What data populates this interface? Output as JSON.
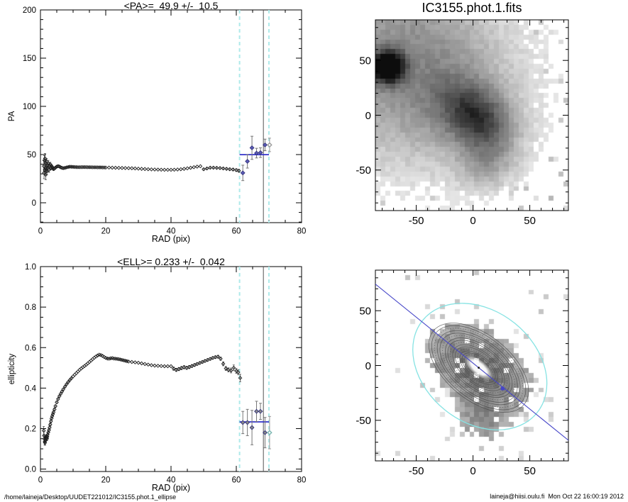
{
  "page": {
    "background": "#ffffff",
    "footer_left": "/home/laineja/Desktop/UUDET221012/IC3155.phot.1_ellipse",
    "footer_right": "laineja@hiisi.oulu.fi  Mon Oct 22 16:00:19 2012"
  },
  "colors": {
    "axis": "#000000",
    "data_point": "#1a1a1a",
    "error_bar": "#555555",
    "fit_line_blue": "#3333cc",
    "fit_point_blue": "#5c5cb8",
    "fit_point_gray": "#8a8a8a",
    "outer_point_teal": "#79b5b0",
    "dashed_guide_cyan": "#aeeaea",
    "solid_guide_gray": "#555555",
    "major_axis_line_blue": "#4646c8",
    "outer_ellipse_cyan": "#86e3e3",
    "isophote_gray": "#4a4a4a"
  },
  "chart_data": [
    {
      "id": "pa_profile",
      "type": "scatter",
      "title": "<PA>=  49.9 +/-  10.5",
      "xlabel": "RAD (pix)",
      "ylabel": "PA",
      "xlim": [
        0,
        80
      ],
      "ylim": [
        -20.6,
        200
      ],
      "xticks": [
        0,
        20,
        40,
        60,
        80
      ],
      "xtick_labels": [
        "0",
        "20",
        "40",
        "60",
        "80"
      ],
      "yticks": [
        0,
        50,
        100,
        150,
        200
      ],
      "ytick_labels": [
        "0",
        "50",
        "100",
        "150",
        "200"
      ],
      "xminor": 5,
      "yminor": 10,
      "mean": 49.9,
      "sigma": 10.5,
      "hline": {
        "y": 49.9,
        "x0": 61,
        "x1": 70
      },
      "vlines_dashed": [
        61,
        70
      ],
      "vline_solid": 68.3,
      "fit_color": "#5c5cb8",
      "extra_color": "#9a9a9a",
      "main_points": [
        [
          1.0,
          38,
          6
        ],
        [
          1.1,
          31,
          6
        ],
        [
          1.2,
          44,
          5
        ],
        [
          1.3,
          34,
          5
        ],
        [
          1.4,
          46,
          5
        ],
        [
          1.5,
          36,
          4
        ],
        [
          1.6,
          29,
          5
        ],
        [
          1.7,
          41,
          4
        ],
        [
          1.8,
          35,
          4
        ],
        [
          1.9,
          43,
          3
        ],
        [
          2.0,
          33,
          4
        ],
        [
          2.1,
          39,
          3
        ],
        [
          2.2,
          36,
          3
        ],
        [
          2.4,
          41,
          3
        ],
        [
          2.6,
          34,
          2.5
        ],
        [
          2.8,
          38,
          2
        ],
        [
          3.0,
          40,
          2
        ],
        [
          3.2,
          36,
          2
        ],
        [
          3.4,
          38,
          1.8
        ],
        [
          3.6,
          37,
          1.6
        ],
        [
          3.8,
          36,
          1.5
        ],
        [
          4.0,
          35,
          1.5
        ],
        [
          4.3,
          35.5,
          1.2
        ],
        [
          4.6,
          36.5,
          1.2
        ],
        [
          5.0,
          37.5,
          1
        ],
        [
          5.4,
          38,
          1
        ],
        [
          5.8,
          37.6,
          1
        ],
        [
          6.2,
          36.8,
          1
        ],
        [
          6.6,
          36.2,
          1
        ],
        [
          7.0,
          35.9,
          0.9
        ],
        [
          7.5,
          36.2,
          0.9
        ],
        [
          8.0,
          36.7,
          0.8
        ],
        [
          8.5,
          37.1,
          0.8
        ],
        [
          9.0,
          37.4,
          0.8
        ],
        [
          9.5,
          37.3,
          0.7
        ],
        [
          10,
          37.2,
          0.7
        ],
        [
          10.5,
          37.1,
          0.6
        ],
        [
          11,
          37.0,
          0.6
        ],
        [
          11.5,
          36.9
        ],
        [
          12,
          36.9
        ],
        [
          12.5,
          37.0
        ],
        [
          13,
          37.0
        ],
        [
          13.5,
          37.0
        ],
        [
          14,
          37.0
        ],
        [
          14.5,
          36.9
        ],
        [
          15,
          36.9
        ],
        [
          15.5,
          36.9
        ],
        [
          16,
          36.8
        ],
        [
          16.5,
          36.8
        ],
        [
          17,
          36.8
        ],
        [
          17.5,
          36.7
        ],
        [
          18,
          36.7
        ],
        [
          18.5,
          36.7
        ],
        [
          19,
          36.6
        ],
        [
          19.5,
          36.6
        ],
        [
          20,
          36.5
        ],
        [
          21,
          36.5
        ],
        [
          22,
          36.4
        ],
        [
          23,
          36.3
        ],
        [
          24,
          36.2
        ],
        [
          25,
          36.1
        ],
        [
          26,
          36.0
        ],
        [
          27,
          35.9
        ],
        [
          28,
          35.8
        ],
        [
          29,
          35.6
        ],
        [
          30,
          35.4
        ],
        [
          31,
          35.2
        ],
        [
          32,
          35.0
        ],
        [
          33,
          34.8
        ],
        [
          34,
          34.6
        ],
        [
          35,
          34.5
        ],
        [
          36,
          34.4
        ],
        [
          37,
          34.3
        ],
        [
          38,
          34.2
        ],
        [
          39,
          34.2
        ],
        [
          40,
          34.2
        ],
        [
          41,
          34.3
        ],
        [
          42,
          34.5
        ],
        [
          43,
          34.8
        ],
        [
          44,
          35.2
        ],
        [
          45,
          35.7
        ],
        [
          46,
          36.3
        ],
        [
          47,
          36.9
        ],
        [
          48,
          37.5
        ],
        [
          49,
          37.9
        ],
        [
          50,
          34.8,
          1
        ],
        [
          51,
          35.6,
          1
        ],
        [
          52,
          36.4,
          1
        ],
        [
          53,
          36.4,
          1
        ],
        [
          54,
          36.2,
          1
        ],
        [
          55,
          36.0,
          1
        ],
        [
          56,
          35.6,
          1
        ],
        [
          57,
          35.2,
          1.1
        ],
        [
          58,
          34.8,
          1.2
        ],
        [
          59,
          34.5,
          1.3
        ],
        [
          60,
          33.9,
          1.4
        ],
        [
          60.8,
          33.2,
          1.5
        ]
      ],
      "fit_points": [
        [
          62,
          31,
          8
        ],
        [
          63.4,
          43,
          7
        ],
        [
          64.8,
          57,
          12
        ],
        [
          66.2,
          51.5,
          5
        ],
        [
          67.4,
          52,
          5
        ],
        [
          68.8,
          60,
          6
        ]
      ],
      "extra_points": [
        [
          70.2,
          60,
          7
        ]
      ]
    },
    {
      "id": "fits_image",
      "type": "heatmap",
      "title": "IC3155.phot.1.fits",
      "xlim": [
        -86,
        84
      ],
      "ylim": [
        -87,
        87
      ],
      "xticks": [
        -50,
        0,
        50
      ],
      "xtick_labels": [
        "-50",
        "0",
        "50"
      ],
      "yticks": [
        -50,
        0,
        50
      ],
      "ytick_labels": [
        "-50",
        "0",
        "50"
      ],
      "minor": 10,
      "grid_n": 39,
      "model": {
        "seed": 42,
        "noise": 0.09,
        "threshold": 0.1,
        "speckle": 0.07,
        "components": [
          {
            "kind": "gauss",
            "a": 1.05,
            "x": -75,
            "y": 44,
            "sx": 9.5,
            "sy": 9.5,
            "rot": 0,
            "label": "foreground-star"
          },
          {
            "kind": "gauss",
            "a": 0.55,
            "x": 4,
            "y": -2,
            "sx": 25,
            "sy": 18,
            "rot": -40,
            "label": "galaxy"
          },
          {
            "kind": "gauss",
            "a": 0.42,
            "x": -70,
            "y": 58,
            "sx": 68,
            "sy": 68,
            "rot": 0,
            "label": "diffuse-halo-nw"
          },
          {
            "kind": "gauss",
            "a": 0.18,
            "x": -15,
            "y": 10,
            "sx": 48,
            "sy": 48,
            "rot": 0,
            "label": "diffuse-halo-center"
          },
          {
            "kind": "gauss",
            "a": 0.25,
            "x": 12,
            "y": -45,
            "sx": 18,
            "sy": 18,
            "rot": 0,
            "label": "south-tail"
          }
        ]
      }
    },
    {
      "id": "ell_profile",
      "type": "scatter",
      "title": "<ELL>= 0.233 +/-  0.042",
      "xlabel": "RAD (pix)",
      "ylabel": "ellipticity",
      "xlim": [
        0,
        80
      ],
      "ylim": [
        -0.012,
        1.0
      ],
      "xticks": [
        0,
        20,
        40,
        60,
        80
      ],
      "xtick_labels": [
        "0",
        "20",
        "40",
        "60",
        "80"
      ],
      "yticks": [
        0.0,
        0.2,
        0.4,
        0.6,
        0.8,
        1.0
      ],
      "ytick_labels": [
        "0.0",
        "0.2",
        "0.4",
        "0.6",
        "0.8",
        "1.0"
      ],
      "xminor": 5,
      "yminor": 0.05,
      "mean": 0.233,
      "sigma": 0.042,
      "hline": {
        "y": 0.233,
        "x0": 61,
        "x1": 70
      },
      "vlines_dashed": [
        61,
        70
      ],
      "vline_solid": 68.3,
      "fit_color": "#8a8a8a",
      "extra_color": "#79b5b0",
      "main_points": [
        [
          1.0,
          0.19,
          0.02
        ],
        [
          1.1,
          0.165,
          0.02
        ],
        [
          1.2,
          0.15,
          0.015
        ],
        [
          1.3,
          0.135,
          0.015
        ],
        [
          1.4,
          0.13,
          0.012
        ],
        [
          1.5,
          0.14,
          0.012
        ],
        [
          1.6,
          0.15,
          0.01
        ],
        [
          1.7,
          0.156,
          0.01
        ],
        [
          1.8,
          0.16,
          0.01
        ],
        [
          1.9,
          0.155,
          0.01
        ],
        [
          2.0,
          0.15,
          0.01
        ],
        [
          2.1,
          0.16,
          0.01
        ],
        [
          2.2,
          0.17,
          0.01
        ],
        [
          2.4,
          0.181,
          0.01
        ],
        [
          2.6,
          0.192,
          0.009
        ],
        [
          2.8,
          0.205,
          0.009
        ],
        [
          3.0,
          0.22,
          0.008
        ],
        [
          3.2,
          0.236,
          0.008
        ],
        [
          3.4,
          0.25,
          0.008
        ],
        [
          3.6,
          0.261,
          0.008
        ],
        [
          3.8,
          0.271,
          0.007
        ],
        [
          4.0,
          0.281,
          0.007
        ],
        [
          4.3,
          0.295,
          0.007
        ],
        [
          4.6,
          0.311,
          0.006
        ],
        [
          5.0,
          0.33,
          0.006
        ],
        [
          5.4,
          0.346,
          0.005
        ],
        [
          5.8,
          0.36,
          0.005
        ],
        [
          6.2,
          0.372,
          0.005
        ],
        [
          6.6,
          0.383,
          0.005
        ],
        [
          7.0,
          0.394,
          0.005
        ],
        [
          7.5,
          0.407,
          0.004
        ],
        [
          8.0,
          0.419,
          0.004
        ],
        [
          8.5,
          0.43,
          0.004
        ],
        [
          9.0,
          0.44,
          0.004
        ],
        [
          9.5,
          0.449,
          0.004
        ],
        [
          10,
          0.458
        ],
        [
          10.5,
          0.466
        ],
        [
          11,
          0.474
        ],
        [
          11.5,
          0.482
        ],
        [
          12,
          0.49
        ],
        [
          12.5,
          0.497
        ],
        [
          13,
          0.503
        ],
        [
          13.5,
          0.509
        ],
        [
          14,
          0.515
        ],
        [
          14.5,
          0.522
        ],
        [
          15,
          0.529
        ],
        [
          15.5,
          0.536
        ],
        [
          16,
          0.543
        ],
        [
          16.5,
          0.55
        ],
        [
          17,
          0.556
        ],
        [
          17.5,
          0.561
        ],
        [
          18,
          0.565
        ],
        [
          18.5,
          0.563
        ],
        [
          19,
          0.559
        ],
        [
          19.5,
          0.554
        ],
        [
          20,
          0.549
        ],
        [
          20.5,
          0.546
        ],
        [
          21,
          0.545
        ],
        [
          21.5,
          0.547
        ],
        [
          22,
          0.548
        ],
        [
          22.5,
          0.546
        ],
        [
          23,
          0.545
        ],
        [
          23.5,
          0.544
        ],
        [
          24,
          0.543
        ],
        [
          24.5,
          0.541
        ],
        [
          25,
          0.539
        ],
        [
          25.5,
          0.537
        ],
        [
          26,
          0.535
        ],
        [
          26.5,
          0.533
        ],
        [
          27,
          0.531
        ],
        [
          28,
          0.529
        ],
        [
          29,
          0.527
        ],
        [
          30,
          0.525
        ],
        [
          31,
          0.522
        ],
        [
          32,
          0.519
        ],
        [
          33,
          0.516
        ],
        [
          34,
          0.513
        ],
        [
          35,
          0.511
        ],
        [
          36,
          0.51
        ],
        [
          37,
          0.509
        ],
        [
          38,
          0.508
        ],
        [
          39,
          0.508
        ],
        [
          40,
          0.508
        ],
        [
          40.8,
          0.496,
          0.008
        ],
        [
          41.6,
          0.49,
          0.008
        ],
        [
          42.4,
          0.494,
          0.008
        ],
        [
          43.2,
          0.499,
          0.008
        ],
        [
          44,
          0.503,
          0.008
        ],
        [
          44.8,
          0.5,
          0.008
        ],
        [
          45.6,
          0.504,
          0.008
        ],
        [
          46.4,
          0.509,
          0.007
        ],
        [
          47.2,
          0.514,
          0.007
        ],
        [
          48,
          0.519,
          0.006
        ],
        [
          48.8,
          0.524,
          0.006
        ],
        [
          49.6,
          0.529,
          0.006
        ],
        [
          50.4,
          0.534,
          0.006
        ],
        [
          51.2,
          0.539,
          0.006
        ],
        [
          52,
          0.544,
          0.006
        ],
        [
          52.8,
          0.549,
          0.006
        ],
        [
          53.6,
          0.553,
          0.006
        ],
        [
          54.4,
          0.555,
          0.007
        ],
        [
          55.2,
          0.545,
          0.008
        ],
        [
          56,
          0.52,
          0.01
        ],
        [
          56.8,
          0.497,
          0.01
        ],
        [
          57.6,
          0.49,
          0.01
        ],
        [
          58.4,
          0.487,
          0.012
        ],
        [
          59.2,
          0.5,
          0.014
        ],
        [
          60,
          0.485,
          0.012
        ],
        [
          60.6,
          0.478,
          0.012
        ],
        [
          61.2,
          0.45,
          0.018
        ]
      ],
      "fit_points": [
        [
          62,
          0.23,
          0.055
        ],
        [
          63.4,
          0.23,
          0.065
        ],
        [
          64.8,
          0.205,
          0.085
        ],
        [
          66.2,
          0.285,
          0.05
        ],
        [
          67.4,
          0.285,
          0.04
        ],
        [
          68.8,
          0.18,
          0.075
        ]
      ],
      "extra_points": [
        [
          70.2,
          0.18,
          0.08
        ]
      ]
    },
    {
      "id": "ellipse_overlay",
      "type": "heatmap",
      "title": "",
      "xlim": [
        -86,
        84
      ],
      "ylim": [
        -87,
        87
      ],
      "xticks": [
        -50,
        0,
        50
      ],
      "xtick_labels": [
        "-50",
        "0",
        "50"
      ],
      "yticks": [
        -50,
        0,
        50
      ],
      "ytick_labels": [
        "-50",
        "0",
        "50"
      ],
      "minor": 10,
      "grid_n": 39,
      "model": {
        "seed": 7,
        "noise": 0.12,
        "threshold": 0.3,
        "hole": 0.045,
        "speckle": 0.1,
        "components": [
          {
            "kind": "gauss",
            "a": 1.0,
            "x": 5,
            "y": -2,
            "sx": 33,
            "sy": 22,
            "rot": -40,
            "label": "masked-galaxy-pixels"
          },
          {
            "kind": "gauss",
            "a": 0.5,
            "x": 8,
            "y": -50,
            "sx": 15,
            "sy": 15,
            "rot": 0,
            "label": "south-tail"
          }
        ]
      },
      "overlay": {
        "center": {
          "x": 5,
          "y": -2
        },
        "isophotes": {
          "count": 22,
          "a_min": 3,
          "ellipticity_inner": 0.52,
          "ellipticity_outer": 0.44,
          "pa_deg": 39
        },
        "outer_ellipse": {
          "x": 6,
          "y": -1,
          "a": 66,
          "b": 50,
          "pa_deg": 39,
          "color": "#86e3e3"
        },
        "major_axis_line": {
          "angle_deg": 39,
          "color": "#4646c8"
        },
        "marker_square": {
          "x": 26,
          "y": -21,
          "color": "#4646c8"
        },
        "center_dot": {
          "color": "#111111"
        }
      }
    }
  ]
}
